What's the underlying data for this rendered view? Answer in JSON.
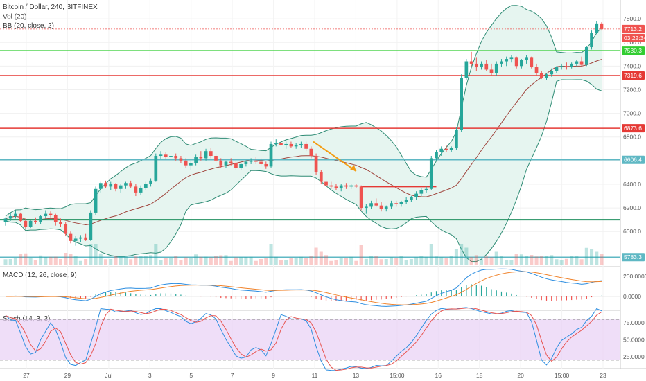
{
  "header": {
    "symbol": "Bitcoin / Dollar, 240, BITFINEX",
    "vol_label": "Vol (20)",
    "bb_label": "BB (20, close, 2)",
    "macd_label": "MACD (12, 26, close, 9)",
    "stoch_label": "Stoch (14, 3, 3)"
  },
  "price_tags": {
    "last_price": "7713.2",
    "countdown": "03:22:34",
    "h_green": "7530.3",
    "h_red_upper": "7319.6",
    "h_red_lower": "6873.6",
    "h_teal_upper": "6606.4",
    "h_teal_lower": "5783.3"
  },
  "colors": {
    "up": "#26a69a",
    "down": "#ef5350",
    "bb_band": "#2e8b74",
    "bb_basis": "#a0453d",
    "bb_fill": "#e6f5f0",
    "hline_green": "#32cd32",
    "hline_red": "#e53935",
    "hline_teal": "#5fb8c4",
    "hline_darkgreen": "#1f8f5f",
    "arrow": "#f39c12",
    "macd_line": "#2d8ee0",
    "signal_line": "#f0832b",
    "stoch_k": "#2d8ee0",
    "stoch_d": "#e8534f",
    "stoch_bg": "#e8d0f5"
  },
  "chart_data": {
    "type": "candlestick",
    "title": "Bitcoin / Dollar, 240, BITFINEX",
    "y_ticks": [
      "7800.0",
      "7600.0",
      "7400.0",
      "7200.0",
      "7000.0",
      "6800.0",
      "6600.0",
      "6400.0",
      "6200.0",
      "6000.0"
    ],
    "ylim": [
      5720,
      7900
    ],
    "x_ticks": [
      "27",
      "29",
      "Jul",
      "3",
      "5",
      "7",
      "9",
      "11",
      "13",
      "15:00",
      "16",
      "18",
      "20",
      "15:00",
      "23"
    ],
    "candles": [
      [
        6080,
        6120,
        6050,
        6110
      ],
      [
        6110,
        6160,
        6090,
        6130
      ],
      [
        6130,
        6180,
        6110,
        6150
      ],
      [
        6150,
        6160,
        6080,
        6090
      ],
      [
        6090,
        6110,
        6020,
        6040
      ],
      [
        6040,
        6100,
        6030,
        6090
      ],
      [
        6090,
        6120,
        6060,
        6080
      ],
      [
        6080,
        6140,
        6060,
        6130
      ],
      [
        6130,
        6180,
        6110,
        6150
      ],
      [
        6150,
        6170,
        6120,
        6140
      ],
      [
        6140,
        6150,
        6050,
        6080
      ],
      [
        6080,
        6110,
        6040,
        6060
      ],
      [
        6060,
        6080,
        5960,
        5980
      ],
      [
        5980,
        6000,
        5900,
        5920
      ],
      [
        5920,
        5960,
        5880,
        5940
      ],
      [
        5940,
        5970,
        5910,
        5950
      ],
      [
        5950,
        5980,
        5920,
        5930
      ],
      [
        5930,
        6180,
        5920,
        6160
      ],
      [
        6160,
        6380,
        6140,
        6360
      ],
      [
        6360,
        6420,
        6330,
        6410
      ],
      [
        6410,
        6430,
        6370,
        6380
      ],
      [
        6380,
        6420,
        6350,
        6400
      ],
      [
        6400,
        6410,
        6340,
        6360
      ],
      [
        6360,
        6400,
        6330,
        6390
      ],
      [
        6390,
        6420,
        6360,
        6410
      ],
      [
        6410,
        6430,
        6370,
        6380
      ],
      [
        6380,
        6400,
        6300,
        6330
      ],
      [
        6330,
        6390,
        6310,
        6370
      ],
      [
        6370,
        6420,
        6350,
        6400
      ],
      [
        6400,
        6450,
        6380,
        6430
      ],
      [
        6430,
        6660,
        6420,
        6640
      ],
      [
        6640,
        6680,
        6610,
        6650
      ],
      [
        6650,
        6670,
        6610,
        6630
      ],
      [
        6630,
        6660,
        6600,
        6640
      ],
      [
        6640,
        6660,
        6600,
        6620
      ],
      [
        6620,
        6640,
        6580,
        6600
      ],
      [
        6600,
        6620,
        6540,
        6560
      ],
      [
        6560,
        6600,
        6520,
        6580
      ],
      [
        6580,
        6650,
        6560,
        6630
      ],
      [
        6630,
        6680,
        6600,
        6620
      ],
      [
        6620,
        6700,
        6600,
        6680
      ],
      [
        6680,
        6710,
        6620,
        6640
      ],
      [
        6640,
        6660,
        6580,
        6600
      ],
      [
        6600,
        6620,
        6540,
        6560
      ],
      [
        6560,
        6600,
        6540,
        6590
      ],
      [
        6590,
        6620,
        6560,
        6580
      ],
      [
        6580,
        6600,
        6520,
        6540
      ],
      [
        6540,
        6580,
        6520,
        6570
      ],
      [
        6570,
        6600,
        6550,
        6590
      ],
      [
        6590,
        6620,
        6570,
        6600
      ],
      [
        6600,
        6630,
        6570,
        6590
      ],
      [
        6590,
        6620,
        6560,
        6570
      ],
      [
        6570,
        6590,
        6530,
        6550
      ],
      [
        6550,
        6760,
        6540,
        6740
      ],
      [
        6740,
        6780,
        6720,
        6750
      ],
      [
        6750,
        6770,
        6720,
        6730
      ],
      [
        6730,
        6760,
        6700,
        6740
      ],
      [
        6740,
        6760,
        6710,
        6720
      ],
      [
        6720,
        6750,
        6700,
        6730
      ],
      [
        6730,
        6760,
        6710,
        6740
      ],
      [
        6740,
        6760,
        6680,
        6700
      ],
      [
        6700,
        6720,
        6620,
        6640
      ],
      [
        6640,
        6660,
        6480,
        6500
      ],
      [
        6500,
        6520,
        6400,
        6420
      ],
      [
        6420,
        6440,
        6370,
        6390
      ],
      [
        6390,
        6420,
        6360,
        6380
      ],
      [
        6380,
        6400,
        6350,
        6370
      ],
      [
        6370,
        6400,
        6340,
        6390
      ],
      [
        6390,
        6410,
        6360,
        6380
      ],
      [
        6380,
        6400,
        6360,
        6390
      ],
      [
        6390,
        6400,
        6370,
        6380
      ],
      [
        6380,
        6390,
        6180,
        6200
      ],
      [
        6200,
        6230,
        6150,
        6210
      ],
      [
        6210,
        6260,
        6190,
        6240
      ],
      [
        6240,
        6280,
        6210,
        6220
      ],
      [
        6220,
        6250,
        6170,
        6190
      ],
      [
        6190,
        6220,
        6170,
        6210
      ],
      [
        6210,
        6260,
        6190,
        6240
      ],
      [
        6240,
        6260,
        6210,
        6230
      ],
      [
        6230,
        6260,
        6210,
        6250
      ],
      [
        6250,
        6290,
        6230,
        6270
      ],
      [
        6270,
        6300,
        6250,
        6290
      ],
      [
        6290,
        6340,
        6270,
        6320
      ],
      [
        6320,
        6370,
        6300,
        6350
      ],
      [
        6350,
        6380,
        6330,
        6360
      ],
      [
        6360,
        6640,
        6350,
        6620
      ],
      [
        6620,
        6690,
        6600,
        6670
      ],
      [
        6670,
        6720,
        6640,
        6700
      ],
      [
        6700,
        6730,
        6670,
        6690
      ],
      [
        6690,
        6720,
        6670,
        6710
      ],
      [
        6710,
        6880,
        6690,
        6860
      ],
      [
        6860,
        7330,
        6840,
        7300
      ],
      [
        7300,
        7460,
        7280,
        7440
      ],
      [
        7440,
        7520,
        7400,
        7420
      ],
      [
        7420,
        7470,
        7360,
        7390
      ],
      [
        7390,
        7440,
        7370,
        7420
      ],
      [
        7420,
        7450,
        7360,
        7370
      ],
      [
        7370,
        7420,
        7320,
        7340
      ],
      [
        7340,
        7440,
        7320,
        7420
      ],
      [
        7420,
        7460,
        7390,
        7440
      ],
      [
        7440,
        7480,
        7400,
        7460
      ],
      [
        7460,
        7490,
        7430,
        7470
      ],
      [
        7470,
        7480,
        7380,
        7400
      ],
      [
        7400,
        7460,
        7380,
        7450
      ],
      [
        7450,
        7490,
        7420,
        7470
      ],
      [
        7470,
        7480,
        7380,
        7390
      ],
      [
        7390,
        7420,
        7320,
        7340
      ],
      [
        7340,
        7360,
        7290,
        7300
      ],
      [
        7300,
        7340,
        7280,
        7330
      ],
      [
        7330,
        7380,
        7310,
        7360
      ],
      [
        7360,
        7400,
        7340,
        7390
      ],
      [
        7390,
        7420,
        7370,
        7400
      ],
      [
        7400,
        7430,
        7370,
        7390
      ],
      [
        7390,
        7430,
        7380,
        7420
      ],
      [
        7420,
        7450,
        7400,
        7440
      ],
      [
        7440,
        7480,
        7400,
        7410
      ],
      [
        7410,
        7570,
        7400,
        7560
      ],
      [
        7560,
        7700,
        7540,
        7680
      ],
      [
        7680,
        7780,
        7670,
        7760
      ],
      [
        7760,
        7770,
        7700,
        7713
      ]
    ],
    "macd_ticks": [
      "200.0000",
      "0.0000"
    ],
    "stoch_ticks": [
      "75.0000",
      "50.0000",
      "25.0000"
    ]
  }
}
